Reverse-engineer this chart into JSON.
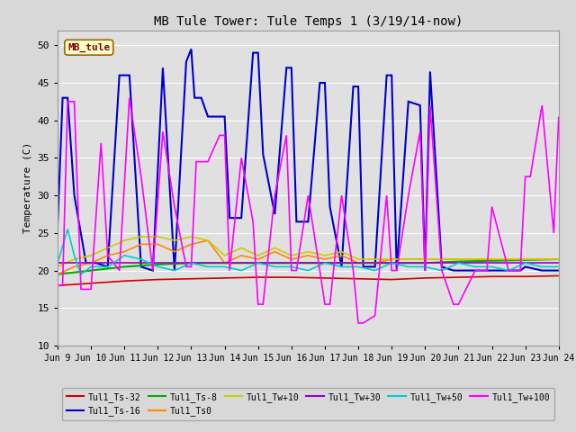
{
  "title": "MB Tule Tower: Tule Temps 1 (3/19/14-now)",
  "ylabel": "Temperature (C)",
  "ylim": [
    10,
    52
  ],
  "yticks": [
    10,
    15,
    20,
    25,
    30,
    35,
    40,
    45,
    50
  ],
  "background_color": "#e0e0e0",
  "fig_background": "#e8e8e8",
  "legend_label": "MB_tule",
  "x_tick_labels": [
    "Jun 9",
    "Jun 10",
    "Jun 11",
    "Jun 12",
    "Jun 13",
    "Jun 14",
    "Jun 15",
    "Jun 16",
    "Jun 17",
    "Jun 18",
    "Jun 19",
    "Jun 20",
    "Jun 21",
    "Jun 22",
    "Jun 23",
    "Jun 24"
  ],
  "series_order": [
    "Tul1_Ts-32",
    "Tul1_Ts-16",
    "Tul1_Ts-8",
    "Tul1_Ts0",
    "Tul1_Tw+10",
    "Tul1_Tw+30",
    "Tul1_Tw+50",
    "Tul1_Tw+100"
  ],
  "series": {
    "Tul1_Ts-32": {
      "color": "#cc0000",
      "linewidth": 1.2,
      "data_x": [
        0,
        1,
        2,
        3,
        4,
        5,
        6,
        7,
        8,
        9,
        10,
        11,
        12,
        13,
        14,
        15
      ],
      "data_y": [
        18.0,
        18.3,
        18.6,
        18.8,
        18.9,
        19.0,
        19.1,
        19.1,
        19.0,
        18.9,
        18.8,
        19.0,
        19.1,
        19.2,
        19.2,
        19.3
      ]
    },
    "Tul1_Ts-16": {
      "color": "#0000cc",
      "linewidth": 1.5,
      "data_x": [
        0,
        0.15,
        0.3,
        0.5,
        0.85,
        1.15,
        1.5,
        1.85,
        2.15,
        2.5,
        2.85,
        3.15,
        3.5,
        3.85,
        4.0,
        4.1,
        4.3,
        4.5,
        4.85,
        5.0,
        5.15,
        5.5,
        5.85,
        6.0,
        6.15,
        6.5,
        6.85,
        7.0,
        7.15,
        7.5,
        7.85,
        8.0,
        8.15,
        8.5,
        8.85,
        9.0,
        9.15,
        9.5,
        9.85,
        10.0,
        10.15,
        10.5,
        10.85,
        11.0,
        11.15,
        11.5,
        11.85,
        12.0,
        12.5,
        12.85,
        13.0,
        13.5,
        13.85,
        14.0,
        14.5,
        14.85,
        15.0
      ],
      "data_y": [
        26.0,
        43.0,
        43.0,
        30.0,
        21.0,
        21.0,
        20.5,
        46.0,
        46.0,
        20.5,
        20.0,
        47.0,
        20.0,
        47.8,
        49.5,
        43.0,
        43.0,
        40.5,
        40.5,
        40.5,
        27.0,
        27.0,
        49.0,
        49.0,
        35.5,
        27.5,
        47.0,
        47.0,
        26.5,
        26.5,
        45.0,
        45.0,
        28.5,
        20.5,
        44.5,
        44.5,
        20.5,
        20.5,
        46.0,
        46.0,
        20.0,
        42.5,
        42.0,
        20.0,
        46.5,
        20.5,
        20.0,
        20.0,
        20.0,
        20.0,
        20.0,
        20.0,
        20.0,
        20.5,
        20.0,
        20.0,
        20.0
      ]
    },
    "Tul1_Ts-8": {
      "color": "#00aa00",
      "linewidth": 1.5,
      "data_x": [
        0,
        1,
        2,
        3,
        4,
        5,
        6,
        7,
        8,
        9,
        10,
        11,
        12,
        13,
        14,
        15
      ],
      "data_y": [
        19.5,
        20.0,
        20.5,
        20.8,
        21.0,
        21.0,
        21.0,
        21.0,
        21.0,
        21.0,
        21.0,
        21.0,
        21.2,
        21.3,
        21.4,
        21.5
      ]
    },
    "Tul1_Ts0": {
      "color": "#ff8800",
      "linewidth": 1.2,
      "data_x": [
        0,
        0.5,
        1,
        1.5,
        2,
        2.5,
        3,
        3.5,
        4,
        4.5,
        5,
        5.5,
        6,
        6.5,
        7,
        7.5,
        8,
        8.5,
        9,
        9.5,
        10,
        10.5,
        11,
        11.5,
        12,
        12.5,
        13,
        13.5,
        14,
        14.5,
        15
      ],
      "data_y": [
        19.5,
        20.5,
        21.0,
        22.0,
        22.5,
        23.5,
        23.5,
        22.5,
        23.5,
        24.0,
        21.0,
        22.0,
        21.5,
        22.5,
        21.5,
        22.0,
        21.5,
        22.0,
        21.0,
        21.0,
        21.5,
        21.5,
        21.5,
        21.5,
        21.5,
        21.5,
        21.5,
        21.5,
        21.5,
        21.5,
        21.5
      ]
    },
    "Tul1_Tw+10": {
      "color": "#cccc00",
      "linewidth": 1.2,
      "data_x": [
        0,
        0.5,
        1,
        1.5,
        2,
        2.5,
        3,
        3.5,
        4,
        4.5,
        5,
        5.5,
        6,
        6.5,
        7,
        7.5,
        8,
        8.5,
        9,
        9.5,
        10,
        10.5,
        11,
        11.5,
        12,
        12.5,
        13,
        13.5,
        14,
        14.5,
        15
      ],
      "data_y": [
        20.5,
        21.5,
        22.0,
        23.0,
        24.0,
        24.5,
        24.5,
        24.0,
        24.5,
        24.0,
        22.0,
        23.0,
        22.0,
        23.0,
        22.0,
        22.5,
        22.0,
        22.5,
        21.5,
        21.5,
        21.5,
        21.5,
        21.5,
        21.5,
        21.5,
        21.5,
        21.5,
        21.5,
        21.5,
        21.5,
        21.5
      ]
    },
    "Tul1_Tw+30": {
      "color": "#9900cc",
      "linewidth": 1.2,
      "data_x": [
        0,
        0.5,
        1,
        1.5,
        2,
        2.5,
        3,
        3.5,
        4,
        4.5,
        5,
        5.5,
        6,
        6.5,
        7,
        7.5,
        8,
        8.5,
        9,
        9.5,
        10,
        10.5,
        11,
        11.5,
        12,
        12.5,
        13,
        13.5,
        14,
        14.5,
        15
      ],
      "data_y": [
        21.0,
        21.0,
        21.0,
        21.0,
        21.0,
        21.0,
        21.0,
        21.0,
        21.0,
        21.0,
        21.0,
        21.0,
        21.0,
        21.0,
        21.0,
        21.0,
        21.0,
        21.0,
        21.0,
        21.0,
        21.0,
        21.0,
        21.0,
        21.0,
        21.0,
        21.0,
        21.0,
        21.0,
        21.0,
        21.0,
        21.0
      ]
    },
    "Tul1_Tw+50": {
      "color": "#00cccc",
      "linewidth": 1.2,
      "data_x": [
        0,
        0.3,
        0.5,
        0.7,
        1,
        1.5,
        2,
        2.5,
        3,
        3.5,
        4,
        4.5,
        5,
        5.5,
        6,
        6.5,
        7,
        7.5,
        8,
        8.5,
        9,
        9.5,
        10,
        10.5,
        11,
        11.5,
        12,
        12.5,
        13,
        13.5,
        14,
        14.5,
        15
      ],
      "data_y": [
        21.0,
        25.5,
        22.0,
        19.5,
        20.5,
        20.5,
        22.0,
        21.5,
        20.5,
        20.0,
        21.0,
        20.5,
        20.5,
        20.0,
        21.0,
        20.5,
        20.5,
        20.0,
        21.0,
        20.5,
        20.5,
        20.0,
        21.0,
        20.5,
        20.5,
        20.0,
        21.0,
        20.5,
        20.5,
        20.0,
        21.0,
        20.5,
        20.5
      ]
    },
    "Tul1_Tw+100": {
      "color": "#ff00ff",
      "linewidth": 1.2,
      "data_x": [
        0,
        0.15,
        0.3,
        0.5,
        0.7,
        1.0,
        1.3,
        1.5,
        1.85,
        2.15,
        2.5,
        2.85,
        3.15,
        3.5,
        3.85,
        4.0,
        4.15,
        4.5,
        4.85,
        5.0,
        5.15,
        5.5,
        5.85,
        6.0,
        6.15,
        6.5,
        6.85,
        7.0,
        7.15,
        7.5,
        7.85,
        8.0,
        8.15,
        8.5,
        8.85,
        9.0,
        9.15,
        9.5,
        9.85,
        10.0,
        10.15,
        10.5,
        10.85,
        11.0,
        11.15,
        11.5,
        11.85,
        12.0,
        12.5,
        12.85,
        13.0,
        13.5,
        13.85,
        14.0,
        14.15,
        14.5,
        14.85,
        15.0
      ],
      "data_y": [
        18.0,
        18.0,
        42.5,
        42.5,
        17.5,
        17.5,
        37.0,
        22.0,
        20.0,
        43.0,
        32.5,
        20.0,
        38.5,
        28.5,
        20.5,
        20.5,
        34.5,
        34.5,
        38.0,
        38.0,
        20.0,
        35.0,
        26.5,
        15.5,
        15.5,
        30.0,
        38.0,
        20.0,
        20.0,
        30.0,
        20.0,
        15.5,
        15.5,
        30.0,
        20.0,
        13.0,
        13.0,
        14.0,
        30.0,
        20.0,
        20.0,
        30.0,
        38.5,
        20.0,
        42.0,
        20.0,
        15.5,
        15.5,
        20.0,
        20.0,
        28.5,
        20.0,
        20.0,
        32.5,
        32.5,
        42.0,
        25.0,
        40.5
      ]
    }
  },
  "legend_entries": [
    {
      "label": "Tul1_Ts-32",
      "color": "#cc0000"
    },
    {
      "label": "Tul1_Ts-16",
      "color": "#0000cc"
    },
    {
      "label": "Tul1_Ts-8",
      "color": "#00aa00"
    },
    {
      "label": "Tul1_Ts0",
      "color": "#ff8800"
    },
    {
      "label": "Tul1_Tw+10",
      "color": "#cccc00"
    },
    {
      "label": "Tul1_Tw+30",
      "color": "#9900cc"
    },
    {
      "label": "Tul1_Tw+50",
      "color": "#00cccc"
    },
    {
      "label": "Tul1_Tw+100",
      "color": "#ff00ff"
    }
  ]
}
